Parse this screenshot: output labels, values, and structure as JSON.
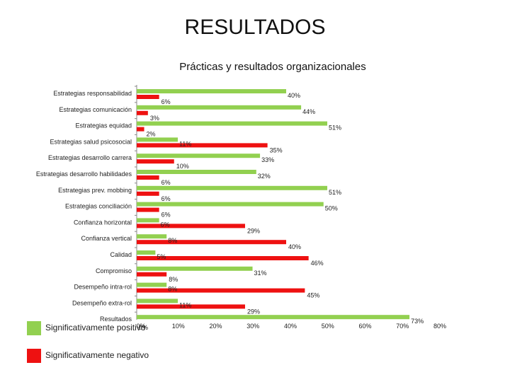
{
  "header": {
    "title": "RESULTADOS",
    "subtitle": "Prácticas y resultados organizacionales"
  },
  "colors": {
    "positive": "#92d050",
    "negative": "#ee1111",
    "axis": "#888888",
    "text": "#222222"
  },
  "chart_data": {
    "type": "bar",
    "orientation": "horizontal",
    "title": "Prácticas y resultados organizacionales",
    "categories": [
      "Estrategias responsabilidad",
      "Estrategias comunicación",
      "Estrategias equidad",
      "Estrategias salud psicosocial",
      "Estrategias desarrollo carrera",
      "Estrategias desarrollo habilidades",
      "Estrategias prev. mobbing",
      "Estrategias conciliación",
      "Confianza horizontal",
      "Confianza vertical",
      "Calidad",
      "Compromiso",
      "Desempeño intra-rol",
      "Desempeño extra-rol",
      "Resultados"
    ],
    "series": [
      {
        "name": "Significativamente positivo",
        "values": [
          40,
          44,
          51,
          11,
          33,
          32,
          51,
          50,
          6,
          8,
          5,
          31,
          8,
          11,
          73
        ],
        "labels": [
          "40%",
          "44%",
          "51%",
          "11%",
          "33%",
          "32%",
          "51%",
          "50%",
          "6%",
          "8%",
          "5%",
          "31%",
          "8%",
          "11%",
          "73%"
        ]
      },
      {
        "name": "Significativamente negativo",
        "values": [
          6,
          3,
          2,
          35,
          10,
          6,
          6,
          6,
          29,
          40,
          46,
          8,
          45,
          29,
          0
        ],
        "labels": [
          "6%",
          "3%",
          "2%",
          "35%",
          "10%",
          "6%",
          "6%",
          "6%",
          "29%",
          "40%",
          "46%",
          "8%",
          "45%",
          "29%",
          "0%"
        ]
      }
    ],
    "xlim": [
      0,
      80
    ],
    "xticks": [
      "0%",
      "10%",
      "20%",
      "30%",
      "40%",
      "50%",
      "60%",
      "70%",
      "80%"
    ],
    "legend_position": "bottom-left",
    "grid": false
  },
  "legend": {
    "positive_label": "Significativamente positivo",
    "negative_label": "Significativamente negativo"
  }
}
